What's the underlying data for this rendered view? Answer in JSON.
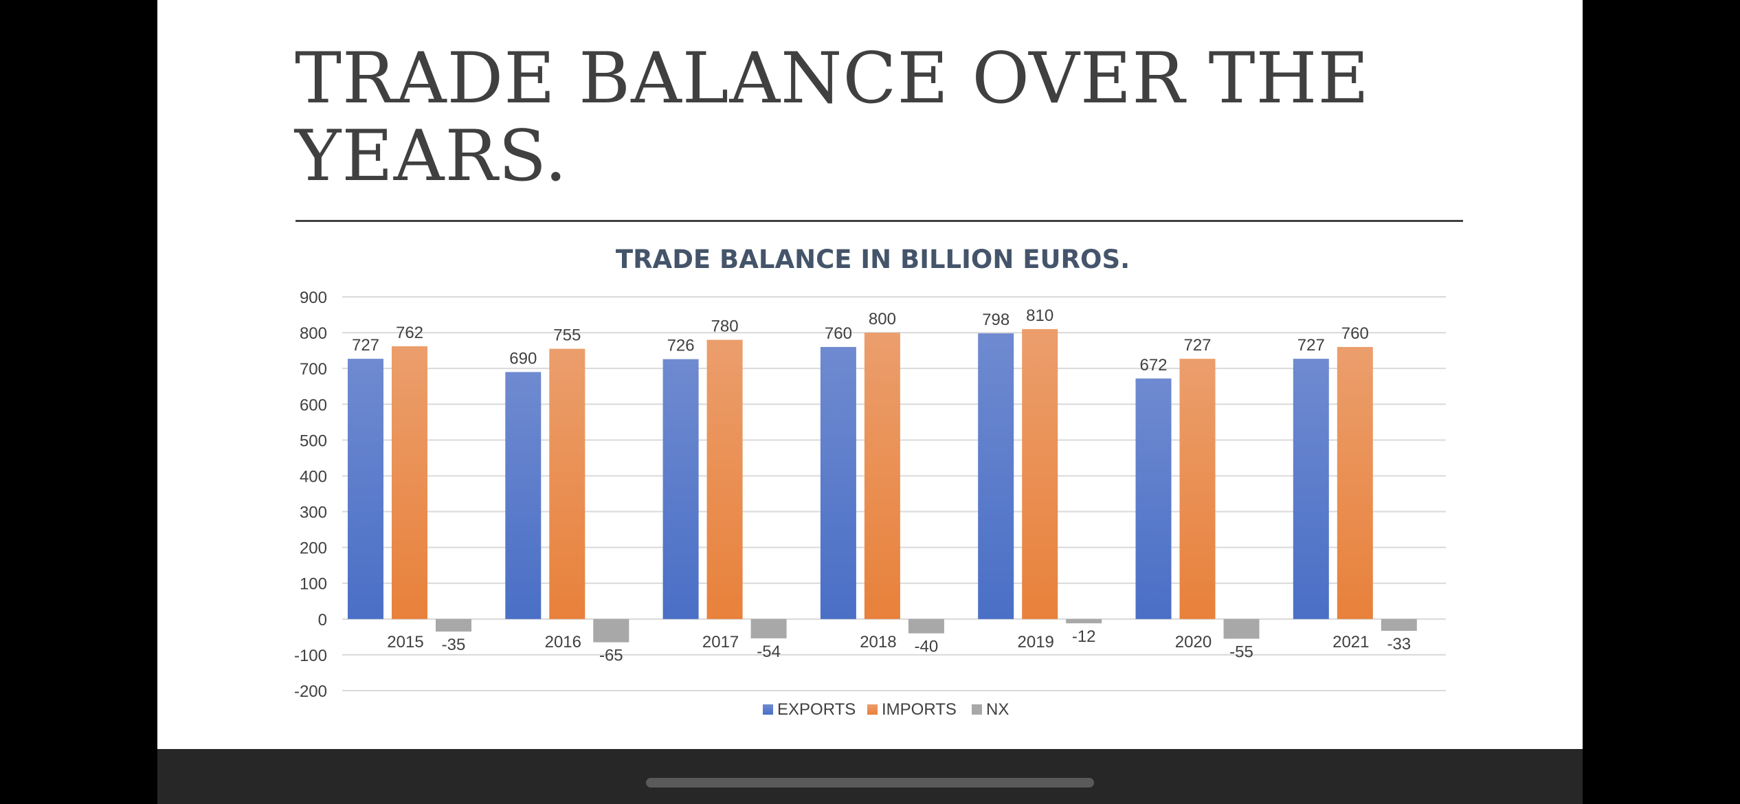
{
  "slide": {
    "title": "TRADE BALANCE OVER THE YEARS."
  },
  "colors": {
    "exports_top": "#6f8ad0",
    "exports_bottom": "#4a6fc6",
    "imports_top": "#eb9e6c",
    "imports_bottom": "#e8813b",
    "nx": "#a8a8a8",
    "grid": "#d9d9d9",
    "text": "#404040",
    "title": "#44546a"
  },
  "chart_data": {
    "type": "bar",
    "title": "TRADE BALANCE IN BILLION EUROS.",
    "xlabel": "",
    "ylabel": "",
    "categories": [
      "2015",
      "2016",
      "2017",
      "2018",
      "2019",
      "2020",
      "2021"
    ],
    "series": [
      {
        "name": "EXPORTS",
        "values": [
          727,
          690,
          726,
          760,
          798,
          672,
          727
        ]
      },
      {
        "name": "IMPORTS",
        "values": [
          762,
          755,
          780,
          800,
          810,
          727,
          760
        ]
      },
      {
        "name": "NX",
        "values": [
          -35,
          -65,
          -54,
          -40,
          -12,
          -55,
          -33
        ]
      }
    ],
    "ylim": [
      -200,
      900
    ],
    "yticks": [
      -200,
      -100,
      0,
      100,
      200,
      300,
      400,
      500,
      600,
      700,
      800,
      900
    ],
    "grid": true,
    "data_labels": true,
    "legend_position": "bottom"
  }
}
